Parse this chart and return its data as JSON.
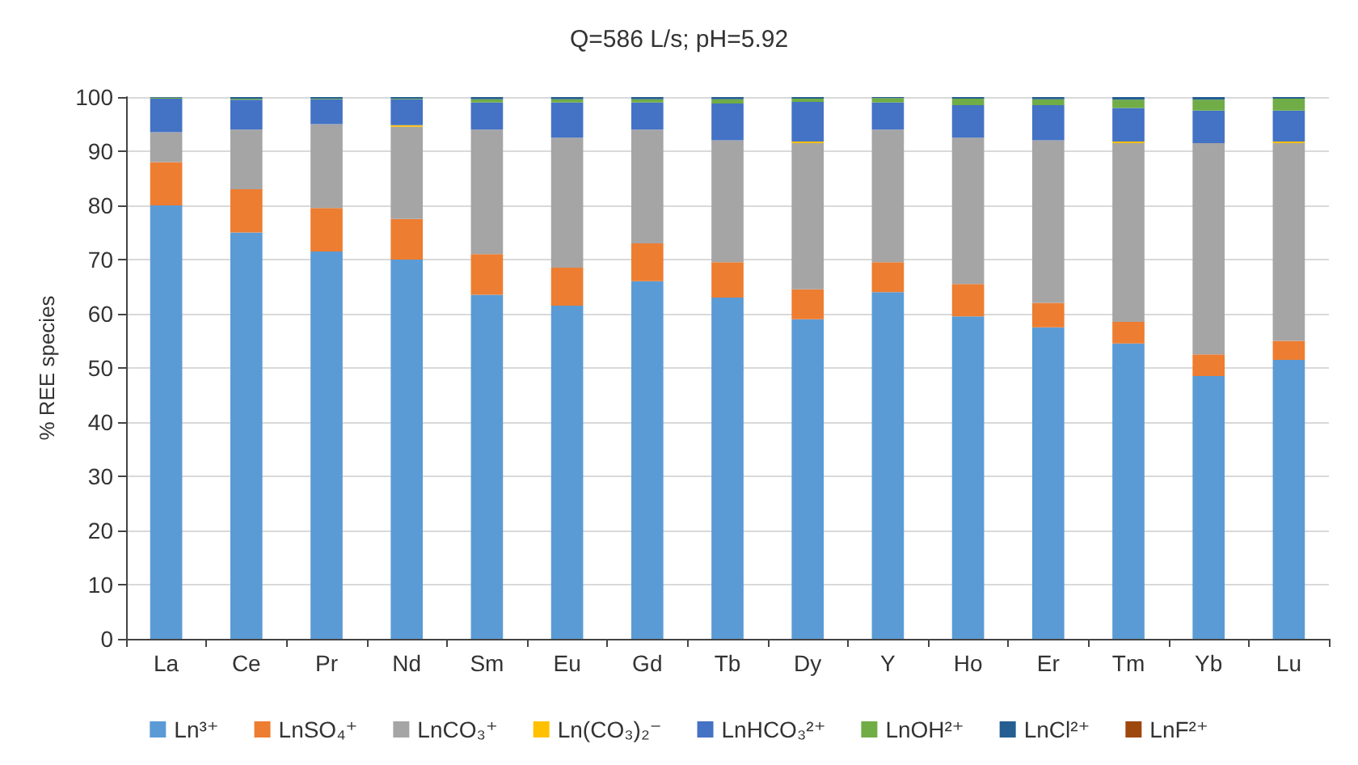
{
  "chart_data": {
    "type": "bar",
    "title": "Q=586 L/s; pH=5.92",
    "ylabel": "% REE species",
    "stacked": true,
    "categories": [
      "La",
      "Ce",
      "Pr",
      "Nd",
      "Sm",
      "Eu",
      "Gd",
      "Tb",
      "Dy",
      "Y",
      "Ho",
      "Er",
      "Tm",
      "Yb",
      "Lu"
    ],
    "series": [
      {
        "name": "Ln³⁺",
        "color": "#5b9bd5",
        "values": [
          80,
          75,
          71.5,
          70,
          63.5,
          61.5,
          66,
          63,
          59,
          64,
          59.5,
          57.5,
          54.5,
          48.5,
          51.5
        ]
      },
      {
        "name": "LnSO₄⁺",
        "color": "#ed7d31",
        "values": [
          8,
          8,
          8,
          7.5,
          7.5,
          7,
          7,
          6.5,
          5.5,
          5.5,
          6,
          4.5,
          4,
          4,
          3.5
        ]
      },
      {
        "name": "LnCO₃⁺",
        "color": "#a5a5a5",
        "values": [
          5.5,
          11,
          15.5,
          17,
          23,
          24,
          21,
          22.5,
          27,
          24.5,
          27,
          30,
          33,
          39,
          36.5
        ]
      },
      {
        "name": "Ln(CO₃)₂⁻",
        "color": "#ffc000",
        "values": [
          0,
          0,
          0,
          0.3,
          0,
          0,
          0,
          0,
          0.3,
          0,
          0,
          0,
          0.3,
          0,
          0.3
        ]
      },
      {
        "name": "LnHCO₃²⁺",
        "color": "#4472c4",
        "values": [
          6.2,
          5.5,
          4.6,
          4.8,
          5,
          6.5,
          5,
          6.8,
          7.3,
          5,
          6,
          6.5,
          6.2,
          6,
          5.7
        ]
      },
      {
        "name": "LnOH²⁺",
        "color": "#70ad47",
        "values": [
          0.2,
          0.2,
          0.1,
          0.1,
          0.6,
          0.6,
          0.6,
          0.8,
          0.6,
          0.8,
          1.2,
          1.1,
          1.5,
          2,
          2.2
        ]
      },
      {
        "name": "LnCl²⁺",
        "color": "#255e91",
        "values": [
          0.1,
          0.3,
          0.3,
          0.3,
          0.4,
          0.4,
          0.4,
          0.4,
          0.3,
          0.2,
          0.3,
          0.4,
          0.5,
          0.5,
          0.3
        ]
      },
      {
        "name": "LnF²⁺",
        "color": "#9e480e",
        "values": [
          0,
          0,
          0,
          0,
          0,
          0,
          0,
          0,
          0,
          0,
          0,
          0,
          0,
          0,
          0
        ]
      }
    ],
    "ylim": [
      0,
      100
    ],
    "yticks": [
      0,
      10,
      20,
      30,
      40,
      50,
      60,
      70,
      80,
      90,
      100
    ],
    "grid": "y",
    "legend": "bottom"
  }
}
